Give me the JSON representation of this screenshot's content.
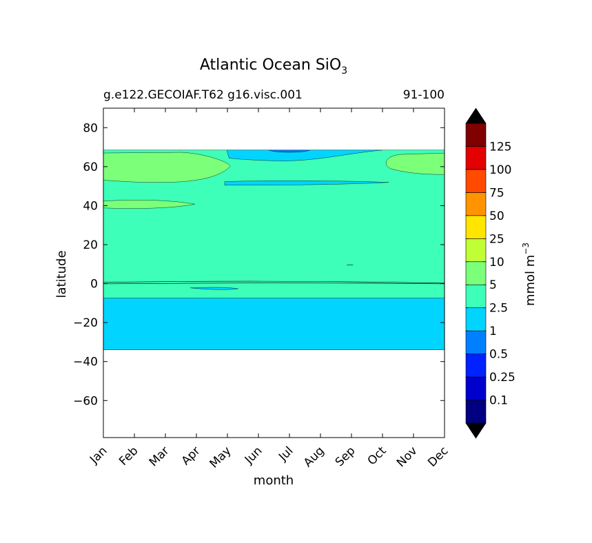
{
  "chart_data": {
    "type": "heatmap",
    "title": "Atlantic Ocean SiO",
    "title_subscript": "3",
    "subtitle_left": "g.e122.GECOIAF.T62 g16.visc.001",
    "subtitle_right": "91-100",
    "xlabel": "month",
    "ylabel": "latitude",
    "x_categories": [
      "Jan",
      "Feb",
      "Mar",
      "Apr",
      "May",
      "Jun",
      "Jul",
      "Aug",
      "Sep",
      "Oct",
      "Nov",
      "Dec"
    ],
    "y_ticks": [
      80,
      60,
      40,
      20,
      0,
      -20,
      -40,
      -60
    ],
    "y_tick_labels": [
      "80",
      "60",
      "40",
      "20",
      "0",
      "−20",
      "−40",
      "−60"
    ],
    "ylim": [
      -79,
      90
    ],
    "data_lat_range": [
      -34,
      68.5
    ],
    "grid": false,
    "colorbar": {
      "label": "mmol m",
      "label_exponent": "−3",
      "levels": [
        0,
        0.1,
        0.25,
        0.5,
        1,
        2.5,
        5,
        10,
        25,
        50,
        75,
        100,
        125,
        150
      ],
      "tick_labels": [
        "0.1",
        "0.25",
        "0.5",
        "1",
        "2.5",
        "5",
        "10",
        "25",
        "50",
        "75",
        "100",
        "125"
      ],
      "colors": [
        "#000080",
        "#0000cd",
        "#0022ff",
        "#0080ff",
        "#00d4ff",
        "#3dffb9",
        "#7cff79",
        "#c0ff36",
        "#ffe500",
        "#ff9400",
        "#ff4a00",
        "#e30000",
        "#800000"
      ],
      "extend_under_color": "#000000",
      "extend_over_color": "#000000"
    },
    "regions": [
      {
        "level": "1-2.5",
        "description": "southern band",
        "lat": [
          -34,
          -7.5
        ]
      },
      {
        "level": "2.5-5",
        "description": "main band",
        "lat": [
          -7.5,
          68.5
        ]
      },
      {
        "level": "5-10",
        "description": "north-west high",
        "month_range": [
          "Jan",
          "May"
        ],
        "lat": [
          52,
          67
        ]
      },
      {
        "level": "5-10",
        "description": "north-east high",
        "month_range": [
          "Oct",
          "Dec"
        ],
        "lat": [
          56,
          67
        ]
      },
      {
        "level": "5-10",
        "description": "mid-latitude patch",
        "month_range": [
          "Jan",
          "Apr"
        ],
        "lat": [
          38.5,
          43
        ]
      },
      {
        "level": "1-2.5",
        "description": "northern low",
        "month_range": [
          "May",
          "Oct"
        ],
        "lat": [
          63,
          68.5
        ]
      },
      {
        "level": "0.5-1",
        "description": "northern minimum",
        "month_range": [
          "Jul",
          "Jul"
        ],
        "lat": [
          67,
          68.5
        ]
      },
      {
        "level": "1-2.5",
        "description": "low strip near 52N",
        "month_range": [
          "May",
          "Sep"
        ],
        "lat": [
          50.5,
          53
        ]
      }
    ]
  }
}
